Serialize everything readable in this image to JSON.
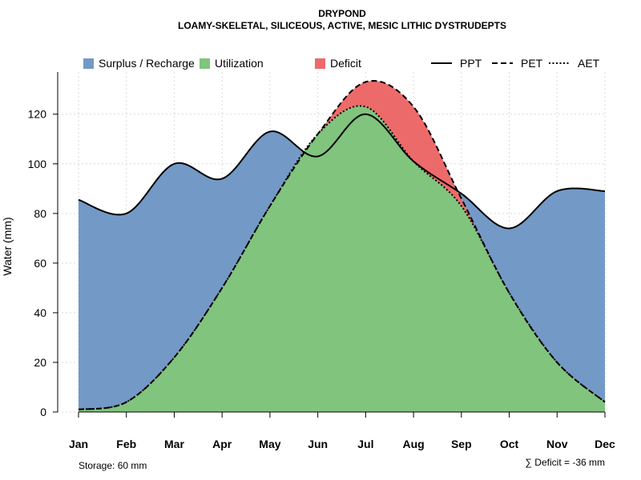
{
  "chart_data": {
    "type": "area",
    "title": "DRYPOND",
    "subtitle": "LOAMY-SKELETAL, SILICEOUS, ACTIVE, MESIC LITHIC DYSTRUDEPTS",
    "xlabel": "",
    "ylabel": "Water (mm)",
    "ylim": [
      0,
      137
    ],
    "yticks": [
      0,
      20,
      40,
      60,
      80,
      100,
      120
    ],
    "categories": [
      "Jan",
      "Feb",
      "Mar",
      "Apr",
      "May",
      "Jun",
      "Jul",
      "Aug",
      "Sep",
      "Oct",
      "Nov",
      "Dec"
    ],
    "series": [
      {
        "name": "PPT",
        "style": "solid",
        "values": [
          85.5,
          80,
          100,
          94,
          113,
          103,
          120,
          101,
          88,
          74,
          89,
          89
        ]
      },
      {
        "name": "PET",
        "style": "dashed",
        "values": [
          1,
          4,
          22,
          50,
          83,
          112,
          133,
          123,
          86,
          48,
          20,
          4
        ]
      },
      {
        "name": "AET",
        "style": "dotted",
        "values": [
          1,
          4,
          22,
          50,
          83,
          112,
          123,
          101,
          83,
          48,
          20,
          4
        ]
      }
    ],
    "areas": [
      {
        "name": "Surplus / Recharge",
        "color": "#7399C6"
      },
      {
        "name": "Utilization",
        "color": "#80C47D"
      },
      {
        "name": "Deficit",
        "color": "#ED6A6A"
      }
    ],
    "grid": true,
    "legend_position": "top",
    "footnotes": {
      "storage": "Storage: 60 mm",
      "deficit": "∑ Deficit = -36 mm"
    }
  }
}
